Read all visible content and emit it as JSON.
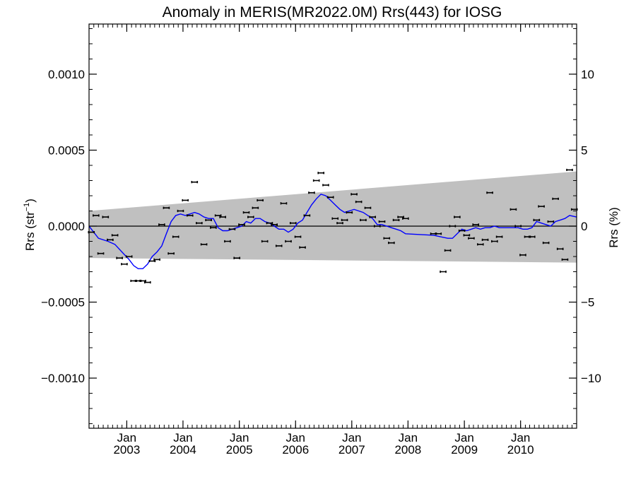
{
  "chart_data": {
    "type": "scatter",
    "title": "Anomaly in MERIS(MR2022.0M) Rrs(443) for IOSG",
    "ylabel_left": "Rrs (str",
    "ylabel_left_sup": "−1",
    "ylabel_left_close": ")",
    "ylabel_right": "Rrs (%)",
    "x_range": [
      "2002-05-01",
      "2010-12-31"
    ],
    "ylim": [
      -0.00133,
      0.00133
    ],
    "ylim_right": [
      -13.3,
      13.3
    ],
    "left_ticks": [
      {
        "value": 0.001,
        "label": "0.0010"
      },
      {
        "value": 0.0005,
        "label": "0.0005"
      },
      {
        "value": 0.0,
        "label": "0.0000"
      },
      {
        "value": -0.0005,
        "label": "−0.0005"
      },
      {
        "value": -0.001,
        "label": "−0.0010"
      }
    ],
    "right_ticks": [
      {
        "value": 10,
        "label": "10"
      },
      {
        "value": 5,
        "label": "5"
      },
      {
        "value": 0,
        "label": "0"
      },
      {
        "value": -5,
        "label": "−5"
      },
      {
        "value": -10,
        "label": "−10"
      }
    ],
    "x_ticks": [
      {
        "date": "2003-01-01",
        "month": "Jan",
        "year": "2003"
      },
      {
        "date": "2004-01-01",
        "month": "Jan",
        "year": "2004"
      },
      {
        "date": "2005-01-01",
        "month": "Jan",
        "year": "2005"
      },
      {
        "date": "2006-01-01",
        "month": "Jan",
        "year": "2006"
      },
      {
        "date": "2007-01-01",
        "month": "Jan",
        "year": "2007"
      },
      {
        "date": "2008-01-01",
        "month": "Jan",
        "year": "2008"
      },
      {
        "date": "2009-01-01",
        "month": "Jan",
        "year": "2009"
      },
      {
        "date": "2010-01-01",
        "month": "Jan",
        "year": "2010"
      }
    ],
    "band": {
      "start": {
        "date": "2002-05-01",
        "upper": 0.0001,
        "lower": -0.00021
      },
      "end": {
        "date": "2010-12-31",
        "upper": 0.00036,
        "lower": -0.00024
      },
      "color": "#c0c0c0"
    },
    "points": [
      {
        "x": "2002-05-16",
        "y": -4e-05
      },
      {
        "x": "2002-06-15",
        "y": 7e-05
      },
      {
        "x": "2002-07-16",
        "y": -0.00018
      },
      {
        "x": "2002-08-16",
        "y": 6e-05
      },
      {
        "x": "2002-09-15",
        "y": -9e-05
      },
      {
        "x": "2002-10-16",
        "y": -6e-05
      },
      {
        "x": "2002-11-15",
        "y": -0.00021
      },
      {
        "x": "2002-12-16",
        "y": -0.00025
      },
      {
        "x": "2003-01-16",
        "y": -0.0002
      },
      {
        "x": "2003-02-15",
        "y": -0.00036
      },
      {
        "x": "2003-03-16",
        "y": -0.00036
      },
      {
        "x": "2003-04-15",
        "y": -0.00036
      },
      {
        "x": "2003-05-16",
        "y": -0.00037
      },
      {
        "x": "2003-06-15",
        "y": -0.00023
      },
      {
        "x": "2003-07-16",
        "y": -0.00022
      },
      {
        "x": "2003-08-16",
        "y": 1e-05
      },
      {
        "x": "2003-09-15",
        "y": 0.00012
      },
      {
        "x": "2003-10-16",
        "y": -0.00018
      },
      {
        "x": "2003-11-15",
        "y": -7e-05
      },
      {
        "x": "2003-12-16",
        "y": 0.0001
      },
      {
        "x": "2004-01-16",
        "y": 0.00017
      },
      {
        "x": "2004-02-15",
        "y": 7e-05
      },
      {
        "x": "2004-03-16",
        "y": 0.00029
      },
      {
        "x": "2004-04-15",
        "y": 2e-05
      },
      {
        "x": "2004-05-16",
        "y": -0.00012
      },
      {
        "x": "2004-06-15",
        "y": 4e-05
      },
      {
        "x": "2004-07-16",
        "y": -1e-05
      },
      {
        "x": "2004-08-16",
        "y": 7e-05
      },
      {
        "x": "2004-09-15",
        "y": 6e-05
      },
      {
        "x": "2004-10-16",
        "y": -0.0001
      },
      {
        "x": "2004-11-15",
        "y": -2e-05
      },
      {
        "x": "2004-12-16",
        "y": -0.00021
      },
      {
        "x": "2005-01-16",
        "y": 1e-05
      },
      {
        "x": "2005-02-15",
        "y": 9e-05
      },
      {
        "x": "2005-03-16",
        "y": 6e-05
      },
      {
        "x": "2005-04-15",
        "y": 0.00012
      },
      {
        "x": "2005-05-16",
        "y": 0.00017
      },
      {
        "x": "2005-06-15",
        "y": -0.0001
      },
      {
        "x": "2005-07-16",
        "y": 2e-05
      },
      {
        "x": "2005-08-16",
        "y": 1e-05
      },
      {
        "x": "2005-09-15",
        "y": -0.00013
      },
      {
        "x": "2005-10-16",
        "y": 0.00015
      },
      {
        "x": "2005-11-15",
        "y": -0.0001
      },
      {
        "x": "2005-12-16",
        "y": 2e-05
      },
      {
        "x": "2006-01-16",
        "y": -7e-05
      },
      {
        "x": "2006-02-15",
        "y": -0.00014
      },
      {
        "x": "2006-03-16",
        "y": 7e-05
      },
      {
        "x": "2006-04-15",
        "y": 0.00022
      },
      {
        "x": "2006-05-16",
        "y": 0.0003
      },
      {
        "x": "2006-06-15",
        "y": 0.00035
      },
      {
        "x": "2006-07-16",
        "y": 0.00027
      },
      {
        "x": "2006-08-16",
        "y": 0.00019
      },
      {
        "x": "2006-09-15",
        "y": 5e-05
      },
      {
        "x": "2006-10-16",
        "y": 2e-05
      },
      {
        "x": "2006-11-15",
        "y": 4e-05
      },
      {
        "x": "2006-12-16",
        "y": 9e-05
      },
      {
        "x": "2007-01-16",
        "y": 0.00021
      },
      {
        "x": "2007-02-15",
        "y": 0.00016
      },
      {
        "x": "2007-03-16",
        "y": 4e-05
      },
      {
        "x": "2007-04-15",
        "y": 0.00012
      },
      {
        "x": "2007-05-16",
        "y": 6e-05
      },
      {
        "x": "2007-06-15",
        "y": 0.0
      },
      {
        "x": "2007-07-16",
        "y": 3e-05
      },
      {
        "x": "2007-08-16",
        "y": -8e-05
      },
      {
        "x": "2007-09-15",
        "y": -0.00011
      },
      {
        "x": "2007-10-16",
        "y": 4e-05
      },
      {
        "x": "2007-11-15",
        "y": 6e-05
      },
      {
        "x": "2007-12-16",
        "y": 5e-05
      },
      {
        "x": "2008-06-15",
        "y": -5e-05
      },
      {
        "x": "2008-07-16",
        "y": -5e-05
      },
      {
        "x": "2008-08-16",
        "y": -0.0003
      },
      {
        "x": "2008-09-15",
        "y": -0.00016
      },
      {
        "x": "2008-10-16",
        "y": 0.0
      },
      {
        "x": "2008-11-15",
        "y": 6e-05
      },
      {
        "x": "2008-12-16",
        "y": -3e-05
      },
      {
        "x": "2009-01-16",
        "y": -6e-05
      },
      {
        "x": "2009-02-15",
        "y": -8e-05
      },
      {
        "x": "2009-03-16",
        "y": 1e-05
      },
      {
        "x": "2009-04-15",
        "y": -0.00012
      },
      {
        "x": "2009-05-16",
        "y": -9e-05
      },
      {
        "x": "2009-06-15",
        "y": 0.00022
      },
      {
        "x": "2009-07-16",
        "y": -0.0001
      },
      {
        "x": "2009-08-16",
        "y": -7e-05
      },
      {
        "x": "2009-11-15",
        "y": 0.00011
      },
      {
        "x": "2009-12-16",
        "y": 0.0
      },
      {
        "x": "2010-01-16",
        "y": -0.00019
      },
      {
        "x": "2010-02-15",
        "y": -7e-05
      },
      {
        "x": "2010-03-16",
        "y": -7e-05
      },
      {
        "x": "2010-04-15",
        "y": 4e-05
      },
      {
        "x": "2010-05-16",
        "y": 0.00013
      },
      {
        "x": "2010-06-15",
        "y": -0.00011
      },
      {
        "x": "2010-07-16",
        "y": 3e-05
      },
      {
        "x": "2010-08-16",
        "y": 0.00018
      },
      {
        "x": "2010-09-15",
        "y": -0.00015
      },
      {
        "x": "2010-10-16",
        "y": -0.00022
      },
      {
        "x": "2010-11-15",
        "y": 0.00037
      },
      {
        "x": "2010-12-16",
        "y": 0.00011
      }
    ],
    "smooth_line": {
      "color": "#0000ff",
      "points": [
        {
          "x": "2002-05-01",
          "y": 0.0
        },
        {
          "x": "2002-07-01",
          "y": -8e-05
        },
        {
          "x": "2002-09-01",
          "y": -0.0001
        },
        {
          "x": "2002-10-16",
          "y": -0.00012
        },
        {
          "x": "2002-12-01",
          "y": -0.00017
        },
        {
          "x": "2003-01-16",
          "y": -0.00022
        },
        {
          "x": "2003-02-15",
          "y": -0.00026
        },
        {
          "x": "2003-03-16",
          "y": -0.00028
        },
        {
          "x": "2003-04-15",
          "y": -0.00028
        },
        {
          "x": "2003-05-16",
          "y": -0.00025
        },
        {
          "x": "2003-06-15",
          "y": -0.0002
        },
        {
          "x": "2003-07-16",
          "y": -0.00017
        },
        {
          "x": "2003-08-16",
          "y": -0.00013
        },
        {
          "x": "2003-09-15",
          "y": -5e-05
        },
        {
          "x": "2003-10-16",
          "y": 3e-05
        },
        {
          "x": "2003-11-15",
          "y": 7e-05
        },
        {
          "x": "2003-12-16",
          "y": 8e-05
        },
        {
          "x": "2004-01-16",
          "y": 7e-05
        },
        {
          "x": "2004-02-15",
          "y": 8e-05
        },
        {
          "x": "2004-03-16",
          "y": 9e-05
        },
        {
          "x": "2004-04-15",
          "y": 8e-05
        },
        {
          "x": "2004-05-16",
          "y": 6e-05
        },
        {
          "x": "2004-06-15",
          "y": 5e-05
        },
        {
          "x": "2004-07-16",
          "y": 5e-05
        },
        {
          "x": "2004-08-16",
          "y": -1e-05
        },
        {
          "x": "2004-09-15",
          "y": -3e-05
        },
        {
          "x": "2004-10-16",
          "y": -3e-05
        },
        {
          "x": "2004-11-15",
          "y": -2e-05
        },
        {
          "x": "2004-12-16",
          "y": -1e-05
        },
        {
          "x": "2005-01-16",
          "y": 0.0
        },
        {
          "x": "2005-02-15",
          "y": 3e-05
        },
        {
          "x": "2005-03-16",
          "y": 2e-05
        },
        {
          "x": "2005-04-15",
          "y": 5e-05
        },
        {
          "x": "2005-05-16",
          "y": 5e-05
        },
        {
          "x": "2005-06-15",
          "y": 3e-05
        },
        {
          "x": "2005-07-16",
          "y": 2e-05
        },
        {
          "x": "2005-08-16",
          "y": 0.0
        },
        {
          "x": "2005-09-15",
          "y": -2e-05
        },
        {
          "x": "2005-10-16",
          "y": -2e-05
        },
        {
          "x": "2005-11-15",
          "y": -4e-05
        },
        {
          "x": "2005-12-16",
          "y": -2e-05
        },
        {
          "x": "2006-01-16",
          "y": 2e-05
        },
        {
          "x": "2006-02-15",
          "y": 4e-05
        },
        {
          "x": "2006-03-16",
          "y": 9e-05
        },
        {
          "x": "2006-04-15",
          "y": 0.00014
        },
        {
          "x": "2006-05-16",
          "y": 0.00018
        },
        {
          "x": "2006-06-15",
          "y": 0.00021
        },
        {
          "x": "2006-07-16",
          "y": 0.0002
        },
        {
          "x": "2006-08-16",
          "y": 0.00017
        },
        {
          "x": "2006-09-15",
          "y": 0.00014
        },
        {
          "x": "2006-10-16",
          "y": 0.00011
        },
        {
          "x": "2006-11-15",
          "y": 9e-05
        },
        {
          "x": "2006-12-16",
          "y": 0.0001
        },
        {
          "x": "2007-01-16",
          "y": 0.00011
        },
        {
          "x": "2007-02-15",
          "y": 0.0001
        },
        {
          "x": "2007-03-16",
          "y": 9e-05
        },
        {
          "x": "2007-04-15",
          "y": 7e-05
        },
        {
          "x": "2007-05-16",
          "y": 5e-05
        },
        {
          "x": "2007-06-15",
          "y": 1e-05
        },
        {
          "x": "2007-07-16",
          "y": 1e-05
        },
        {
          "x": "2007-08-16",
          "y": 0.0
        },
        {
          "x": "2007-09-15",
          "y": -1e-05
        },
        {
          "x": "2007-10-16",
          "y": -2e-05
        },
        {
          "x": "2007-11-15",
          "y": -3e-05
        },
        {
          "x": "2007-12-16",
          "y": -5e-05
        },
        {
          "x": "2008-06-15",
          "y": -6e-05
        },
        {
          "x": "2008-09-15",
          "y": -8e-05
        },
        {
          "x": "2008-10-16",
          "y": -8e-05
        },
        {
          "x": "2008-11-15",
          "y": -5e-05
        },
        {
          "x": "2008-12-16",
          "y": -2e-05
        },
        {
          "x": "2009-01-16",
          "y": -3e-05
        },
        {
          "x": "2009-02-15",
          "y": -2e-05
        },
        {
          "x": "2009-03-16",
          "y": -1e-05
        },
        {
          "x": "2009-04-15",
          "y": -2e-05
        },
        {
          "x": "2009-05-16",
          "y": -1e-05
        },
        {
          "x": "2009-06-15",
          "y": -1e-05
        },
        {
          "x": "2009-07-16",
          "y": 0.0
        },
        {
          "x": "2009-08-16",
          "y": -1e-05
        },
        {
          "x": "2009-11-15",
          "y": -1e-05
        },
        {
          "x": "2009-12-16",
          "y": -1e-05
        },
        {
          "x": "2010-01-16",
          "y": -2e-05
        },
        {
          "x": "2010-02-15",
          "y": -2e-05
        },
        {
          "x": "2010-03-16",
          "y": -1e-05
        },
        {
          "x": "2010-04-15",
          "y": 3e-05
        },
        {
          "x": "2010-05-16",
          "y": 2e-05
        },
        {
          "x": "2010-06-15",
          "y": 1e-05
        },
        {
          "x": "2010-07-16",
          "y": 0.0
        },
        {
          "x": "2010-08-16",
          "y": 3e-05
        },
        {
          "x": "2010-09-15",
          "y": 4e-05
        },
        {
          "x": "2010-10-16",
          "y": 5e-05
        },
        {
          "x": "2010-11-15",
          "y": 7e-05
        },
        {
          "x": "2010-12-31",
          "y": 6e-05
        }
      ]
    },
    "zero_line": 0.0,
    "legend": "none",
    "grid": false
  }
}
